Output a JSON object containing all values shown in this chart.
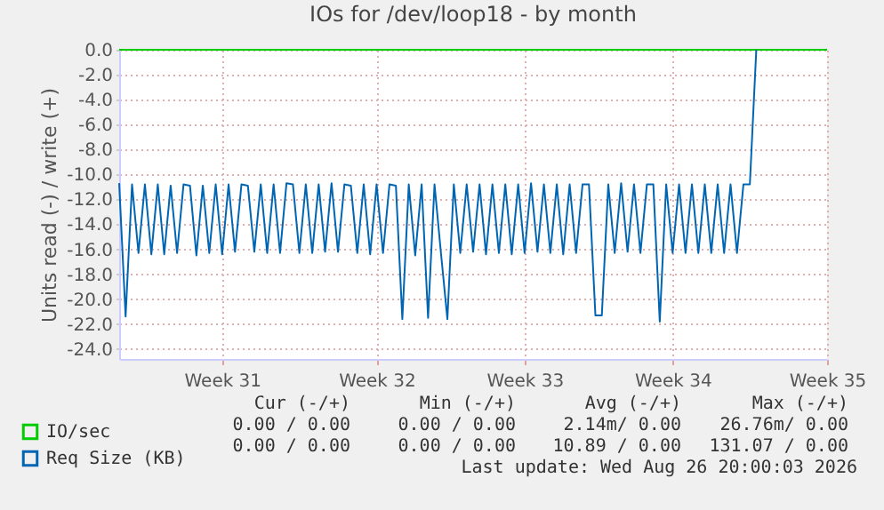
{
  "chart_data": {
    "type": "line",
    "title": "IOs for /dev/loop18 - by month",
    "ylabel": "Units read (-) / write (+)",
    "categories": [
      null,
      null,
      null,
      null,
      null,
      null,
      null,
      null,
      null,
      null,
      null,
      null,
      null,
      null,
      null,
      null,
      "Week 31",
      null,
      null,
      null,
      null,
      null,
      null,
      null,
      null,
      null,
      null,
      null,
      null,
      null,
      null,
      null,
      null,
      null,
      null,
      null,
      null,
      null,
      null,
      null,
      "Week 32",
      null,
      null,
      null,
      null,
      null,
      null,
      null,
      null,
      null,
      null,
      null,
      null,
      null,
      null,
      null,
      null,
      null,
      null,
      null,
      null,
      null,
      null,
      "Week 33",
      null,
      null,
      null,
      null,
      null,
      null,
      null,
      null,
      null,
      null,
      null,
      null,
      null,
      null,
      null,
      null,
      null,
      null,
      null,
      null,
      null,
      null,
      "Week 34",
      null,
      null,
      null,
      null,
      null,
      null,
      null,
      null,
      null,
      null,
      null,
      null,
      null,
      null,
      null,
      null,
      null,
      null,
      null,
      null,
      null,
      null,
      null,
      "Week 35"
    ],
    "ylim": [
      -24.8,
      0
    ],
    "yticks": [
      {
        "value": -24,
        "label": "-24.0"
      },
      {
        "value": -22,
        "label": "-22.0"
      },
      {
        "value": -20,
        "label": "-20.0"
      },
      {
        "value": -18,
        "label": "-18.0"
      },
      {
        "value": -16,
        "label": "-16.0"
      },
      {
        "value": -14,
        "label": "-14.0"
      },
      {
        "value": -12,
        "label": "-12.0"
      },
      {
        "value": -10,
        "label": "-10.0"
      },
      {
        "value": -8,
        "label": "-8.0"
      },
      {
        "value": -6,
        "label": "-6.0"
      },
      {
        "value": -4,
        "label": "-4.0"
      },
      {
        "value": -2,
        "label": "-2.0"
      },
      {
        "value": 0,
        "label": "0.0"
      }
    ],
    "grid": true,
    "legend": "bottom left",
    "series": [
      {
        "name": "IO/sec",
        "color": "#00cc00",
        "values": [
          0,
          0,
          0,
          0,
          0,
          0,
          0,
          0,
          0,
          0,
          0,
          0,
          0,
          0,
          0,
          0,
          0,
          0,
          0,
          0,
          0,
          0,
          0,
          0,
          0,
          0,
          0,
          0,
          0,
          0,
          0,
          0,
          0,
          0,
          0,
          0,
          0,
          0,
          0,
          0,
          0,
          0,
          0,
          0,
          0,
          0,
          0,
          0,
          0,
          0,
          0,
          0,
          0,
          0,
          0,
          0,
          0,
          0,
          0,
          0,
          0,
          0,
          0,
          0,
          0,
          0,
          0,
          0,
          0,
          0,
          0,
          0,
          0,
          0,
          0,
          0,
          0,
          0,
          0,
          0,
          0,
          0,
          0,
          0,
          0,
          0,
          0,
          0,
          0,
          0,
          0,
          0,
          0,
          0,
          0,
          0,
          0,
          0,
          0,
          0,
          0,
          0,
          0,
          0,
          0,
          0,
          0,
          0,
          0,
          0,
          0
        ]
      },
      {
        "name": "Req Size (KB)",
        "color": "#0066b3",
        "values": [
          -10.7,
          -21.4,
          -10.8,
          -16.3,
          -10.8,
          -16.4,
          -10.8,
          -16.4,
          -10.9,
          -16.3,
          -10.8,
          -10.9,
          -16.5,
          -10.9,
          -16.3,
          -10.8,
          -16.4,
          -10.8,
          -16.2,
          -10.8,
          -10.9,
          -16.2,
          -10.8,
          -16.3,
          -10.8,
          -16.3,
          -10.7,
          -10.8,
          -16.3,
          -10.8,
          -16.3,
          -10.8,
          -16.2,
          -10.7,
          -16.2,
          -10.8,
          -10.9,
          -16.3,
          -10.8,
          -16.4,
          -10.8,
          -16.3,
          -10.8,
          -10.9,
          -21.6,
          -10.8,
          -16.5,
          -10.8,
          -21.5,
          -10.8,
          -16.3,
          -21.6,
          -10.8,
          -16.3,
          -10.8,
          -16.2,
          -10.8,
          -16.4,
          -10.8,
          -16.3,
          -10.8,
          -16.4,
          -10.8,
          -16.3,
          -10.7,
          -16.2,
          -10.8,
          -16.3,
          -10.8,
          -16.4,
          -10.8,
          -16.3,
          -10.8,
          -10.8,
          -21.3,
          -21.3,
          -10.8,
          -16.3,
          -10.7,
          -16.2,
          -10.8,
          -16.3,
          -10.8,
          -10.8,
          -21.8,
          -10.8,
          -16.3,
          -10.8,
          -16.3,
          -10.8,
          -16.3,
          -10.8,
          -16.3,
          -10.8,
          -16.3,
          -10.8,
          -16.3,
          -10.8,
          -10.8,
          0,
          null,
          null,
          null,
          null,
          null,
          null,
          null,
          null,
          null,
          null,
          null
        ]
      }
    ],
    "annotations": [
      "Cur (-/+)",
      "Min (-/+)",
      "Avg (-/+)",
      "Max (-/+)",
      "0.00 / 0.00",
      "0.00 / 0.00",
      "2.14m/ 0.00",
      "26.76m/ 0.00",
      "0.00 / 0.00",
      "0.00 / 0.00",
      "10.89 / 0.00",
      "131.07 / 0.00",
      "Last update: Wed Aug 26 20:00:03 2026"
    ]
  }
}
